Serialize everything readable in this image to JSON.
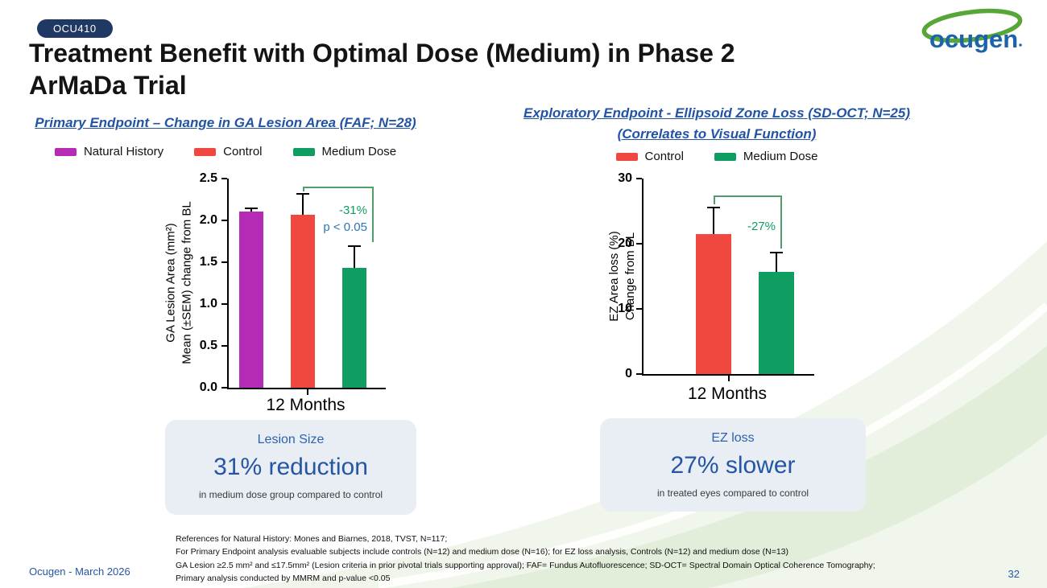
{
  "badge": "OCU410",
  "title": {
    "line1": "Treatment Benefit with Optimal Dose (Medium) in Phase 2",
    "line2": "ArMaDa Trial"
  },
  "logo_text": "ocugen",
  "left_panel": {
    "heading": "Primary Endpoint – Change in GA Lesion Area (FAF; N=28)",
    "card": {
      "label": "Lesion Size",
      "headline": "31% reduction",
      "subtext": "in medium dose group compared to control"
    }
  },
  "right_panel": {
    "heading_line1": "Exploratory Endpoint - Ellipsoid Zone Loss (SD-OCT; N=25)",
    "heading_line2": "(Correlates to Visual Function)",
    "card": {
      "label": "EZ loss",
      "headline": "27% slower",
      "subtext": "in treated eyes compared to control"
    }
  },
  "references": [
    "References for Natural History: Mones and Biarnes, 2018, TVST, N=117;",
    "For Primary Endpoint analysis evaluable subjects include controls (N=12) and medium dose (N=16); for EZ loss analysis, Controls (N=12) and medium dose (N=13)",
    "GA Lesion ≥2.5 mm² and ≤17.5mm² (Lesion criteria in prior pivotal trials supporting approval); FAF= Fundus Autofluorescence; SD-OCT= Spectral Domain Optical Coherence Tomography;",
    "Primary analysis conducted by MMRM and p-value <0.05"
  ],
  "footer": {
    "left": "Ocugen - March 2026",
    "page_number": "32"
  },
  "colors": {
    "natural_history": "#b52bb5",
    "control": "#f0483f",
    "medium_dose": "#0f9d61",
    "accent_blue": "#2456a4",
    "badge_navy": "#1f3864",
    "bracket_green": "#4f9e6b",
    "card_bg": "#e9edf4"
  },
  "chart_data": [
    {
      "type": "bar",
      "title": "Primary Endpoint – Change in GA Lesion Area (FAF; N=28)",
      "categories": [
        "12 Months"
      ],
      "series": [
        {
          "name": "Natural History",
          "value": 2.11,
          "sem": 0.03,
          "color": "#b52bb5"
        },
        {
          "name": "Control",
          "value": 2.07,
          "sem": 0.25,
          "color": "#f0483f"
        },
        {
          "name": "Medium Dose",
          "value": 1.43,
          "sem": 0.26,
          "color": "#0f9d61"
        }
      ],
      "ylabel_lines": [
        "GA Lesion Area (mm²)",
        "Mean (±SEM) change from BL"
      ],
      "ylim": [
        0,
        2.5
      ],
      "yticks": [
        "0.0",
        "0.5",
        "1.0",
        "1.5",
        "2.0",
        "2.5"
      ],
      "grid": false,
      "legend_position": "top",
      "bracket": {
        "from": 1,
        "to": 2,
        "top": 2.4
      },
      "annotations": [
        {
          "text": "-31%",
          "color": "#0f9d61"
        },
        {
          "text": "p < 0.05",
          "color": "#2e75b6"
        }
      ]
    },
    {
      "type": "bar",
      "title": "Exploratory Endpoint - Ellipsoid Zone Loss (SD-OCT; N=25) (Correlates to Visual Function)",
      "categories": [
        "12 Months"
      ],
      "series": [
        {
          "name": "Control",
          "value": 21.5,
          "sem": 4.0,
          "color": "#f0483f"
        },
        {
          "name": "Medium Dose",
          "value": 15.7,
          "sem": 3.0,
          "color": "#0f9d61"
        }
      ],
      "ylabel_lines": [
        "EZ Area loss (%)",
        "Change  from BL"
      ],
      "ylim": [
        0,
        30
      ],
      "yticks": [
        "0",
        "10",
        "20",
        "30"
      ],
      "grid": false,
      "legend_position": "top",
      "bracket": {
        "from": 0,
        "to": 1,
        "top": 27.4
      },
      "annotations": [
        {
          "text": "-27%",
          "color": "#0f9d61"
        }
      ]
    }
  ]
}
